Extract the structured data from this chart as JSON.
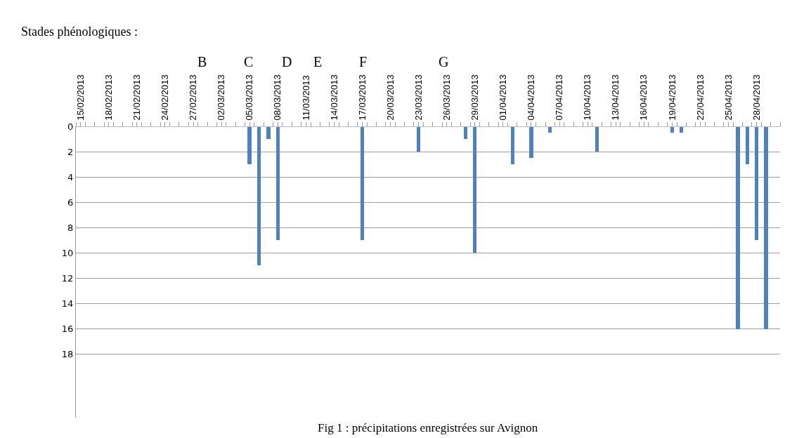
{
  "chart_data": {
    "type": "bar",
    "title": "Stades phénologiques :",
    "x": [
      "2013-03-05",
      "2013-03-06",
      "2013-03-07",
      "2013-03-08",
      "2013-03-17",
      "2013-03-23",
      "2013-03-28",
      "2013-03-29",
      "2013-04-02",
      "2013-04-04",
      "2013-04-06",
      "2013-04-11",
      "2013-04-19",
      "2013-04-20",
      "2013-04-26",
      "2013-04-27",
      "2013-04-28",
      "2013-04-29"
    ],
    "values": [
      3,
      11,
      1,
      9,
      9,
      2,
      1,
      10,
      3,
      2.5,
      0.5,
      2,
      0.5,
      0.5,
      16,
      3,
      9,
      16
    ],
    "color": "#4f81bd",
    "xlim": [
      "2013-02-14T12:00",
      "2013-04-30T12:00"
    ],
    "xticks": [
      {
        "value": "2013-02-15",
        "label": "15/02/2013"
      },
      {
        "value": "2013-02-18",
        "label": "18/02/2013"
      },
      {
        "value": "2013-02-21",
        "label": "21/02/2013"
      },
      {
        "value": "2013-02-24",
        "label": "24/02/2013"
      },
      {
        "value": "2013-02-27",
        "label": "27/02/2013"
      },
      {
        "value": "2013-03-02",
        "label": "02/03/2013"
      },
      {
        "value": "2013-03-05",
        "label": "05/03/2013"
      },
      {
        "value": "2013-03-08",
        "label": "08/03/2013"
      },
      {
        "value": "2013-03-11",
        "label": "11/03/2013"
      },
      {
        "value": "2013-03-14",
        "label": "14/03/2013"
      },
      {
        "value": "2013-03-17",
        "label": "17/03/2013"
      },
      {
        "value": "2013-03-20",
        "label": "20/03/2013"
      },
      {
        "value": "2013-03-23",
        "label": "23/03/2013"
      },
      {
        "value": "2013-03-26",
        "label": "26/03/2013"
      },
      {
        "value": "2013-03-29",
        "label": "29/03/2013"
      },
      {
        "value": "2013-04-01",
        "label": "01/04/2013"
      },
      {
        "value": "2013-04-04",
        "label": "04/04/2013"
      },
      {
        "value": "2013-04-07",
        "label": "07/04/2013"
      },
      {
        "value": "2013-04-10",
        "label": "10/04/2013"
      },
      {
        "value": "2013-04-13",
        "label": "13/04/2013"
      },
      {
        "value": "2013-04-16",
        "label": "16/04/2013"
      },
      {
        "value": "2013-04-19",
        "label": "19/04/2013"
      },
      {
        "value": "2013-04-22",
        "label": "22/04/2013"
      },
      {
        "value": "2013-04-25",
        "label": "25/04/2013"
      },
      {
        "value": "2013-04-28",
        "label": "28/04/2013"
      }
    ],
    "ylim": [
      23,
      0
    ],
    "yticks": [
      0,
      2,
      4,
      6,
      8,
      10,
      12,
      14,
      16,
      18
    ],
    "grid": "y",
    "annotations": [
      "B",
      "C",
      "D",
      "E",
      "F",
      "G",
      "Fig 1 : précipitations enregistrées sur Avignon"
    ]
  }
}
